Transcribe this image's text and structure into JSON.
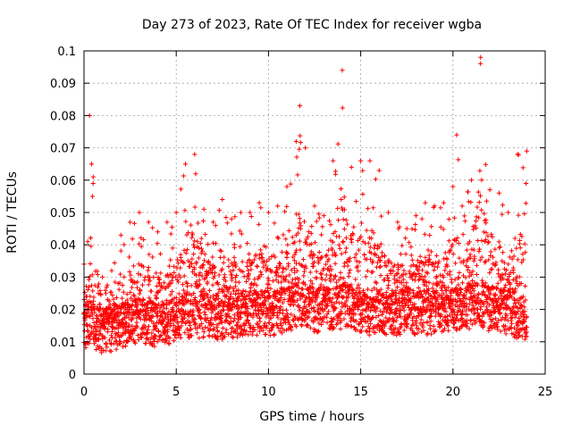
{
  "chart_data": {
    "type": "scatter",
    "title": "Day 273 of 2023, Rate Of TEC Index for receiver wgba",
    "xlabel": "GPS time / hours",
    "ylabel": "ROTI / TECUs",
    "xlim": [
      0,
      25
    ],
    "ylim": [
      0,
      0.1
    ],
    "x_ticks": [
      "0",
      "5",
      "10",
      "15",
      "20",
      "25"
    ],
    "y_ticks": [
      "0",
      "0.01",
      "0.02",
      "0.03",
      "0.04",
      "0.05",
      "0.06",
      "0.07",
      "0.08",
      "0.09",
      "0.1"
    ],
    "grid": true,
    "marker": "+",
    "color": "#ff0000",
    "sample_interval_hours": 0.02,
    "series": [
      {
        "x": [
          0.0,
          0.2,
          0.3,
          0.5,
          1.0,
          1.5,
          2.0,
          2.5,
          3.0,
          3.5,
          4.0,
          4.5,
          5.0,
          5.5,
          6.0,
          6.5,
          7.0,
          7.5,
          8.0,
          8.5,
          9.0,
          9.5,
          10.0,
          10.5,
          11.0,
          11.5,
          11.7,
          12.0,
          12.5,
          13.0,
          13.5,
          14.0,
          14.5,
          15.0,
          15.5,
          16.0,
          16.5,
          17.0,
          17.5,
          18.0,
          18.5,
          19.0,
          19.5,
          20.0,
          20.2,
          20.5,
          21.0,
          21.5,
          22.0,
          22.5,
          23.0,
          23.5,
          24.0
        ],
        "y": [
          0.015,
          0.014,
          0.016,
          0.015,
          0.013,
          0.014,
          0.015,
          0.016,
          0.017,
          0.016,
          0.015,
          0.016,
          0.017,
          0.018,
          0.018,
          0.018,
          0.018,
          0.017,
          0.018,
          0.018,
          0.019,
          0.019,
          0.019,
          0.019,
          0.02,
          0.021,
          0.022,
          0.021,
          0.02,
          0.02,
          0.02,
          0.021,
          0.021,
          0.02,
          0.019,
          0.019,
          0.019,
          0.019,
          0.02,
          0.019,
          0.019,
          0.019,
          0.02,
          0.02,
          0.02,
          0.02,
          0.021,
          0.021,
          0.02,
          0.02,
          0.019,
          0.018,
          0.017
        ]
      },
      {
        "x": [
          0.0,
          0.2,
          0.3,
          0.5,
          1.0,
          1.5,
          2.0,
          2.5,
          3.0,
          3.5,
          4.0,
          4.5,
          5.0,
          5.5,
          6.0,
          6.5,
          7.0,
          7.5,
          8.0,
          8.5,
          9.0,
          9.5,
          10.0,
          10.5,
          11.0,
          11.5,
          11.7,
          12.0,
          12.5,
          13.0,
          13.5,
          14.0,
          14.5,
          15.0,
          15.5,
          16.0,
          16.5,
          17.0,
          17.5,
          18.0,
          18.5,
          19.0,
          19.5,
          20.0,
          20.2,
          20.5,
          21.0,
          21.5,
          22.0,
          22.5,
          23.0,
          23.5,
          24.0
        ],
        "y": [
          0.034,
          0.041,
          0.08,
          0.061,
          0.03,
          0.032,
          0.043,
          0.047,
          0.05,
          0.047,
          0.044,
          0.047,
          0.05,
          0.065,
          0.068,
          0.051,
          0.047,
          0.054,
          0.048,
          0.05,
          0.05,
          0.053,
          0.05,
          0.052,
          0.058,
          0.072,
          0.083,
          0.07,
          0.052,
          0.049,
          0.066,
          0.094,
          0.064,
          0.066,
          0.066,
          0.063,
          0.05,
          0.047,
          0.045,
          0.049,
          0.053,
          0.052,
          0.053,
          0.058,
          0.074,
          0.052,
          0.06,
          0.098,
          0.057,
          0.056,
          0.05,
          0.068,
          0.069
        ]
      }
    ]
  }
}
